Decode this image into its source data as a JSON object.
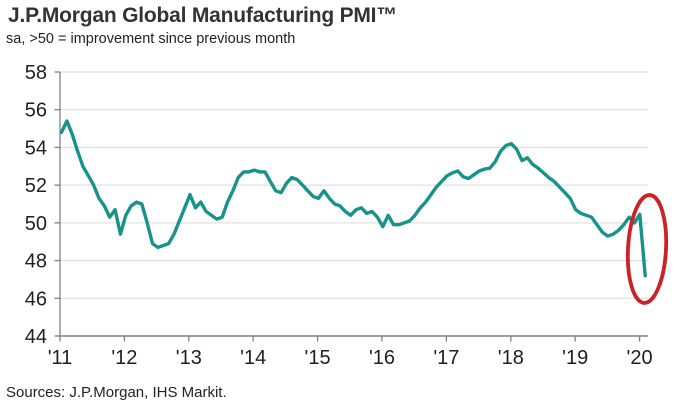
{
  "header": {
    "title": "J.P.Morgan Global Manufacturing PMI™",
    "subtitle": "sa, >50 = improvement since previous month"
  },
  "footer": {
    "source": "Sources: J.P.Morgan, IHS Markit."
  },
  "chart_data": {
    "type": "line",
    "title": "J.P.Morgan Global Manufacturing PMI™",
    "subtitle": "sa, >50 = improvement since previous month",
    "frequency": "monthly",
    "x_tick_labels": [
      "'11",
      "'12",
      "'13",
      "'14",
      "'15",
      "'16",
      "'17",
      "'18",
      "'19",
      "'20"
    ],
    "y_ticks": [
      58,
      56,
      54,
      52,
      50,
      48,
      46,
      44
    ],
    "ylim": [
      44,
      58
    ],
    "grid": true,
    "series": [
      {
        "name": "Global Manufacturing PMI",
        "first_point_label": "'11",
        "last_point_label": "'20",
        "values": [
          54.8,
          55.4,
          54.7,
          53.8,
          53.0,
          52.5,
          52.0,
          51.3,
          50.9,
          50.3,
          50.7,
          49.4,
          50.4,
          50.9,
          51.1,
          51.0,
          50.0,
          48.9,
          48.7,
          48.8,
          48.9,
          49.4,
          50.1,
          50.8,
          51.5,
          50.8,
          51.1,
          50.6,
          50.4,
          50.2,
          50.3,
          51.1,
          51.7,
          52.4,
          52.7,
          52.7,
          52.8,
          52.7,
          52.7,
          52.2,
          51.7,
          51.6,
          52.1,
          52.4,
          52.3,
          52.0,
          51.7,
          51.4,
          51.3,
          51.7,
          51.3,
          51.0,
          50.9,
          50.6,
          50.4,
          50.7,
          50.8,
          50.5,
          50.6,
          50.3,
          49.8,
          50.4,
          49.9,
          49.9,
          50.0,
          50.1,
          50.4,
          50.8,
          51.1,
          51.5,
          51.9,
          52.2,
          52.5,
          52.65,
          52.75,
          52.45,
          52.35,
          52.55,
          52.75,
          52.85,
          52.9,
          53.25,
          53.8,
          54.1,
          54.2,
          53.9,
          53.3,
          53.45,
          53.1,
          52.9,
          52.65,
          52.4,
          52.2,
          51.9,
          51.6,
          51.3,
          50.7,
          50.5,
          50.4,
          50.3,
          49.9,
          49.5,
          49.3,
          49.4,
          49.6,
          49.9,
          50.3,
          50.0,
          50.45,
          47.2
        ]
      }
    ],
    "annotation": {
      "type": "ellipse",
      "meaning": "highlights the sharp drop of the final data point",
      "circled_value": 47.2
    },
    "colors": {
      "line": "#17938c",
      "annotation": "#cb2128",
      "grid": "#d9d9d9",
      "axis": "#808080",
      "tick_text": "#1f1f1f"
    }
  }
}
